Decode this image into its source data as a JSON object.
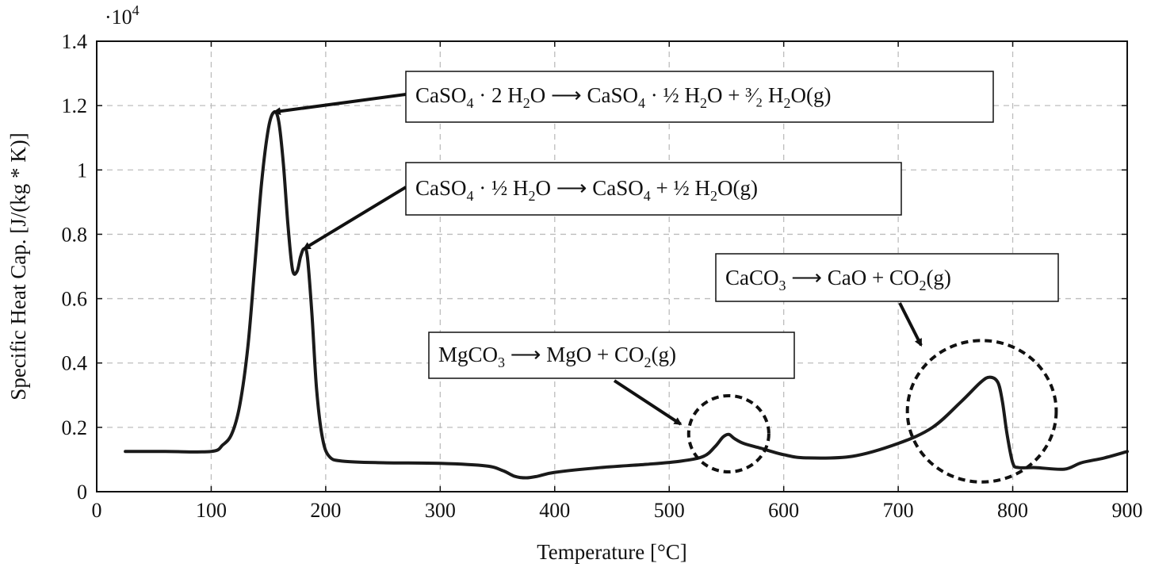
{
  "chart_data": {
    "type": "line",
    "xlabel": "Temperature [°C]",
    "ylabel": "Specific Heat Cap. [J/(kg * K)]",
    "y_multiplier_label": "·10",
    "y_multiplier_exponent": "4",
    "xlim": [
      0,
      900
    ],
    "ylim": [
      0,
      14000
    ],
    "x_ticks": [
      0,
      100,
      200,
      300,
      400,
      500,
      600,
      700,
      800,
      900
    ],
    "y_ticks": [
      0,
      2000,
      4000,
      6000,
      8000,
      10000,
      12000,
      14000
    ],
    "y_tick_labels": [
      "0",
      "0.2",
      "0.4",
      "0.6",
      "0.8",
      "1",
      "1.2",
      "1.4"
    ],
    "grid": true,
    "grid_style": "dashed",
    "series": [
      {
        "color": "#1a1a1a",
        "points": [
          [
            25,
            1250
          ],
          [
            60,
            1250
          ],
          [
            100,
            1250
          ],
          [
            110,
            1450
          ],
          [
            118,
            1800
          ],
          [
            125,
            2700
          ],
          [
            132,
            4500
          ],
          [
            138,
            7000
          ],
          [
            144,
            9600
          ],
          [
            150,
            11300
          ],
          [
            155,
            11800
          ],
          [
            159,
            11500
          ],
          [
            163,
            10200
          ],
          [
            167,
            8300
          ],
          [
            171,
            6900
          ],
          [
            175,
            6850
          ],
          [
            178,
            7300
          ],
          [
            181,
            7550
          ],
          [
            184,
            7300
          ],
          [
            188,
            5500
          ],
          [
            192,
            3200
          ],
          [
            197,
            1700
          ],
          [
            203,
            1100
          ],
          [
            215,
            950
          ],
          [
            250,
            900
          ],
          [
            300,
            880
          ],
          [
            340,
            800
          ],
          [
            355,
            650
          ],
          [
            365,
            480
          ],
          [
            375,
            430
          ],
          [
            385,
            480
          ],
          [
            400,
            600
          ],
          [
            440,
            750
          ],
          [
            480,
            850
          ],
          [
            510,
            950
          ],
          [
            530,
            1100
          ],
          [
            540,
            1400
          ],
          [
            547,
            1700
          ],
          [
            552,
            1780
          ],
          [
            557,
            1650
          ],
          [
            565,
            1500
          ],
          [
            580,
            1350
          ],
          [
            600,
            1150
          ],
          [
            620,
            1050
          ],
          [
            660,
            1100
          ],
          [
            700,
            1500
          ],
          [
            730,
            2000
          ],
          [
            755,
            2800
          ],
          [
            772,
            3400
          ],
          [
            780,
            3560
          ],
          [
            787,
            3400
          ],
          [
            791,
            2800
          ],
          [
            795,
            1800
          ],
          [
            800,
            900
          ],
          [
            805,
            750
          ],
          [
            820,
            750
          ],
          [
            845,
            700
          ],
          [
            860,
            900
          ],
          [
            880,
            1050
          ],
          [
            900,
            1250
          ]
        ]
      }
    ],
    "annotations": [
      {
        "text_parts": [
          "CaSO",
          "4",
          " · 2 H",
          "2",
          "O ⟶ CaSO",
          "4",
          " · ½ H",
          "2",
          "O + ³⁄₂ H",
          "2",
          "O(g)"
        ],
        "target": [
          155,
          11800
        ]
      },
      {
        "text_parts": [
          "CaSO",
          "4",
          " · ½ H",
          "2",
          "O ⟶ CaSO",
          "4",
          " + ½ H",
          "2",
          "O(g)"
        ],
        "target": [
          181,
          7550
        ]
      },
      {
        "text_parts": [
          "MgCO",
          "3",
          " ⟶ MgO + CO",
          "2",
          "(g)"
        ],
        "target": [
          510,
          2100
        ],
        "circle_center": [
          552,
          1800
        ],
        "circle_radius_x": 35
      },
      {
        "text_parts": [
          "CaCO",
          "3",
          " ⟶ CaO + CO",
          "2",
          "(g)"
        ],
        "target": [
          720,
          4550
        ],
        "circle_center": [
          773,
          2500
        ],
        "circle_radius_x": 65
      }
    ]
  }
}
